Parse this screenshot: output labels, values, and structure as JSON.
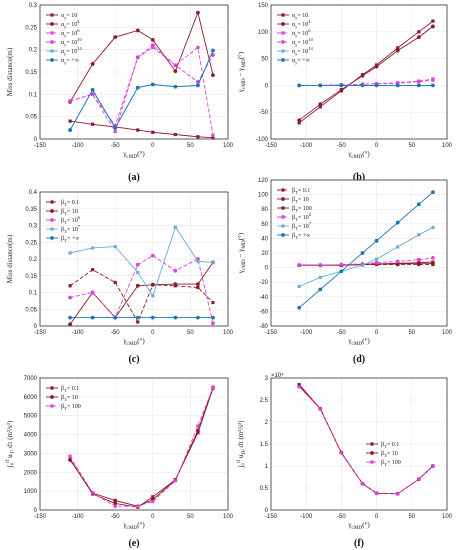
{
  "colors": {
    "darkred": "#8b1a2b",
    "magenta": "#e040e0",
    "lightblue": "#6aaed6",
    "blue": "#1f77b4"
  },
  "chart_data": [
    {
      "type": "line",
      "panel": "a",
      "caption": "(a)",
      "xlabel": "γ_cMD(°)",
      "ylabel": "Miss distance(m)",
      "xlim": [
        -150,
        100
      ],
      "ylim": [
        0,
        0.3
      ],
      "xticks": [
        "-150",
        "-100",
        "-50",
        "0",
        "50",
        "100"
      ],
      "yticks": [
        "0",
        "0.05",
        "0.1",
        "0.15",
        "0.2",
        "0.25",
        "0.3"
      ],
      "grid": true,
      "legend": "top-left",
      "series": [
        {
          "name": "α_y= 10",
          "color": "#8b1a2b",
          "dash": "",
          "marker": "square",
          "x": [
            -110,
            -80,
            -50,
            -20,
            0,
            30,
            60,
            80
          ],
          "y": [
            0.04,
            0.033,
            0.027,
            0.02,
            0.015,
            0.01,
            0.005,
            0.003
          ]
        },
        {
          "name": "α_y= 10^4",
          "color": "#8b1a2b",
          "dash": "",
          "marker": "circle",
          "x": [
            -110,
            -80,
            -50,
            -20,
            0,
            30,
            60,
            80
          ],
          "y": [
            0.083,
            0.168,
            0.228,
            0.243,
            0.222,
            0.152,
            0.283,
            0.143
          ]
        },
        {
          "name": "α_y= 10^6",
          "color": "#e040e0",
          "dash": "4,2",
          "marker": "square",
          "x": [
            -110,
            -80,
            -50,
            -20,
            0,
            30,
            60,
            80
          ],
          "y": [
            0.085,
            0.1,
            0.017,
            0.183,
            0.205,
            0.165,
            0.205,
            0.008
          ]
        },
        {
          "name": "α_y= 10^10",
          "color": "#e040e0",
          "dash": "4,2",
          "marker": "circle",
          "x": [
            -110,
            -80,
            -50,
            -20,
            0,
            30,
            60,
            80
          ],
          "y": [
            0.085,
            0.1,
            0.03,
            0.183,
            0.21,
            0.165,
            0.128,
            0.188
          ]
        },
        {
          "name": "α_y= 10^14",
          "color": "#6aaed6",
          "dash": "",
          "marker": "square",
          "x": [
            -110,
            -80,
            -50,
            -20,
            0,
            30,
            60,
            80
          ],
          "y": [
            0.02,
            0.11,
            0.025,
            0.115,
            0.122,
            0.117,
            0.12,
            0.198
          ]
        },
        {
          "name": "α_y= +∞",
          "color": "#1f77b4",
          "dash": "",
          "marker": "circle",
          "x": [
            -110,
            -80,
            -50,
            -20,
            0,
            30,
            60,
            80
          ],
          "y": [
            0.02,
            0.11,
            0.025,
            0.115,
            0.122,
            0.117,
            0.12,
            0.198
          ]
        }
      ]
    },
    {
      "type": "line",
      "panel": "b",
      "caption": "(b)",
      "xlabel": "γ_cMD(°)",
      "ylabel": "γ_cMD − γ_MD(°)",
      "xlim": [
        -150,
        100
      ],
      "ylim": [
        -100,
        150
      ],
      "xticks": [
        "-150",
        "-100",
        "-50",
        "0",
        "50",
        "100"
      ],
      "yticks": [
        "-100",
        "-50",
        "0",
        "50",
        "100",
        "150"
      ],
      "grid": true,
      "legend": "top-left",
      "series": [
        {
          "name": "α_y= 10",
          "color": "#8b1a2b",
          "dash": "",
          "marker": "square",
          "x": [
            -110,
            -80,
            -50,
            -20,
            0,
            30,
            60,
            80
          ],
          "y": [
            -70,
            -40,
            -10,
            20,
            38,
            70,
            100,
            120
          ]
        },
        {
          "name": "α_y= 10^4",
          "color": "#8b1a2b",
          "dash": "",
          "marker": "circle",
          "x": [
            -110,
            -80,
            -50,
            -20,
            0,
            30,
            60,
            80
          ],
          "y": [
            -65,
            -35,
            -8,
            18,
            35,
            65,
            90,
            110
          ]
        },
        {
          "name": "α_y= 10^6",
          "color": "#e040e0",
          "dash": "4,2",
          "marker": "square",
          "x": [
            -110,
            -80,
            -50,
            -20,
            0,
            30,
            60,
            80
          ],
          "y": [
            0,
            0,
            1,
            2,
            3,
            5,
            8,
            12
          ]
        },
        {
          "name": "α_y= 10^10",
          "color": "#e040e0",
          "dash": "4,2",
          "marker": "circle",
          "x": [
            -110,
            -80,
            -50,
            -20,
            0,
            30,
            60,
            80
          ],
          "y": [
            0,
            0,
            1,
            2,
            3,
            4,
            7,
            10
          ]
        },
        {
          "name": "α_y= 10^14",
          "color": "#6aaed6",
          "dash": "",
          "marker": "square",
          "x": [
            -110,
            -80,
            -50,
            -20,
            0,
            30,
            60,
            80
          ],
          "y": [
            0,
            0,
            0,
            0,
            0,
            0,
            0,
            0
          ]
        },
        {
          "name": "α_y= +∞",
          "color": "#1f77b4",
          "dash": "",
          "marker": "circle",
          "x": [
            -110,
            -80,
            -50,
            -20,
            0,
            30,
            60,
            80
          ],
          "y": [
            0,
            0,
            0,
            0,
            0,
            0,
            0,
            0
          ]
        }
      ]
    },
    {
      "type": "line",
      "panel": "c",
      "caption": "(c)",
      "xlabel": "γ_cMD(°)",
      "ylabel": "Miss distance(m)",
      "xlim": [
        -150,
        100
      ],
      "ylim": [
        0,
        0.4
      ],
      "xticks": [
        "-150",
        "-100",
        "-50",
        "0",
        "50",
        "100"
      ],
      "yticks": [
        "0",
        "0.05",
        "0.1",
        "0.15",
        "0.2",
        "0.25",
        "0.3",
        "0.35",
        "0.4"
      ],
      "grid": true,
      "legend": "top-left",
      "series": [
        {
          "name": "β_T= 0.1",
          "color": "#8b1a2b",
          "dash": "4,2",
          "marker": "square",
          "x": [
            -110,
            -80,
            -50,
            -20,
            0,
            30,
            60,
            80
          ],
          "y": [
            0.12,
            0.168,
            0.13,
            0.012,
            0.123,
            0.12,
            0.115,
            0.07
          ]
        },
        {
          "name": "β_T= 10",
          "color": "#8b1a2b",
          "dash": "",
          "marker": "circle",
          "x": [
            -110,
            -80,
            -50,
            -20,
            0,
            30,
            60,
            80
          ],
          "y": [
            0.005,
            0.1,
            0.025,
            0.12,
            0.123,
            0.125,
            0.125,
            0.19
          ]
        },
        {
          "name": "β_T= 10^6",
          "color": "#e040e0",
          "dash": "4,2",
          "marker": "circle",
          "x": [
            -110,
            -80,
            -50,
            -20,
            0,
            30,
            60,
            80
          ],
          "y": [
            0.085,
            0.1,
            0.025,
            0.183,
            0.21,
            0.165,
            0.2,
            0.008
          ]
        },
        {
          "name": "β_T= 10^7",
          "color": "#6aaed6",
          "dash": "",
          "marker": "square",
          "x": [
            -110,
            -80,
            -50,
            -20,
            0,
            30,
            60,
            80
          ],
          "y": [
            0.218,
            0.233,
            0.237,
            0.16,
            0.09,
            0.295,
            0.193,
            0.19
          ]
        },
        {
          "name": "β_T= +∞",
          "color": "#1f77b4",
          "dash": "",
          "marker": "circle",
          "x": [
            -110,
            -80,
            -50,
            -20,
            0,
            30,
            60,
            80
          ],
          "y": [
            0.025,
            0.025,
            0.025,
            0.025,
            0.025,
            0.025,
            0.025,
            0.025
          ]
        }
      ]
    },
    {
      "type": "line",
      "panel": "d",
      "caption": "(d)",
      "xlabel": "γ_cMD(°)",
      "ylabel": "γ_cMD − γ_MD(°)",
      "xlim": [
        -150,
        100
      ],
      "ylim": [
        -100,
        140
      ],
      "xticks": [
        "-150",
        "-100",
        "-50",
        "0",
        "50",
        "100"
      ],
      "yticks": [
        "-80",
        "-60",
        "-40",
        "-20",
        "0",
        "20",
        "40",
        "60",
        "80",
        "100",
        "120"
      ],
      "grid": true,
      "legend": "top-left",
      "series": [
        {
          "name": "β_T= 0.1",
          "color": "#8b1a2b",
          "dash": "4,2",
          "marker": "square",
          "x": [
            -110,
            -80,
            -50,
            -20,
            0,
            30,
            60,
            80
          ],
          "y": [
            0,
            0,
            0,
            1,
            1,
            1,
            1,
            1
          ]
        },
        {
          "name": "β_T= 10",
          "color": "#8b1a2b",
          "dash": "",
          "marker": "circle",
          "x": [
            -110,
            -80,
            -50,
            -20,
            0,
            30,
            60,
            80
          ],
          "y": [
            0,
            0,
            0,
            1,
            2,
            2,
            3,
            3
          ]
        },
        {
          "name": "β_T= 100",
          "color": "#8b1a2b",
          "dash": "",
          "marker": "square",
          "x": [
            -110,
            -80,
            -50,
            -20,
            0,
            30,
            60,
            80
          ],
          "y": [
            0,
            0,
            0,
            1,
            2,
            3,
            4,
            5
          ]
        },
        {
          "name": "β_T= 10^6",
          "color": "#e040e0",
          "dash": "4,2",
          "marker": "circle",
          "x": [
            -110,
            -80,
            -50,
            -20,
            0,
            30,
            60,
            80
          ],
          "y": [
            0,
            0,
            1,
            2,
            4,
            6,
            9,
            12
          ]
        },
        {
          "name": "β_T= 10^7",
          "color": "#6aaed6",
          "dash": "",
          "marker": "square",
          "x": [
            -110,
            -80,
            -50,
            -20,
            0,
            30,
            60,
            80
          ],
          "y": [
            -35,
            -20,
            -10,
            0,
            10,
            30,
            50,
            62
          ]
        },
        {
          "name": "β_T= +∞",
          "color": "#1f77b4",
          "dash": "",
          "marker": "circle",
          "x": [
            -110,
            -80,
            -50,
            -20,
            0,
            30,
            60,
            80
          ],
          "y": [
            -70,
            -40,
            -10,
            20,
            40,
            70,
            100,
            120
          ]
        }
      ]
    },
    {
      "type": "line",
      "panel": "e",
      "caption": "(e)",
      "xlabel": "γ_cMD(°)",
      "ylabel": "∫₀^tf u_T² dτ (m²/s³)",
      "xlim": [
        -150,
        100
      ],
      "ylim": [
        0,
        7000
      ],
      "xticks": [
        "-150",
        "-100",
        "-50",
        "0",
        "50",
        "100"
      ],
      "yticks": [
        "0",
        "1000",
        "2000",
        "3000",
        "4000",
        "5000",
        "6000",
        "7000"
      ],
      "grid": true,
      "legend": "top-left",
      "series": [
        {
          "name": "β_T= 0.1",
          "color": "#8b1a2b",
          "dash": "",
          "marker": "square",
          "x": [
            -110,
            -80,
            -50,
            -20,
            0,
            30,
            60,
            80
          ],
          "y": [
            2700,
            850,
            350,
            150,
            700,
            1600,
            4100,
            6450
          ]
        },
        {
          "name": "β_T= 10",
          "color": "#8b1a2b",
          "dash": "",
          "marker": "circle",
          "x": [
            -110,
            -80,
            -50,
            -20,
            0,
            30,
            60,
            80
          ],
          "y": [
            2650,
            900,
            500,
            200,
            550,
            1600,
            4200,
            6500
          ]
        },
        {
          "name": "β_T= 100",
          "color": "#e040e0",
          "dash": "4,2",
          "marker": "square",
          "x": [
            -110,
            -80,
            -50,
            -20,
            0,
            30,
            60,
            80
          ],
          "y": [
            2850,
            900,
            200,
            200,
            450,
            1550,
            4450,
            6500
          ]
        }
      ]
    },
    {
      "type": "line",
      "panel": "f",
      "caption": "(f)",
      "xlabel": "γ_cMD(°)",
      "ylabel": "∫₀^tf u_D² dτ (m²/s³)",
      "exponent_label": "×10⁴",
      "xlim": [
        -150,
        100
      ],
      "ylim": [
        0,
        30000
      ],
      "xticks": [
        "-150",
        "-100",
        "-50",
        "0",
        "50",
        "100"
      ],
      "yticks": [
        "0",
        "0.5",
        "1",
        "1.5",
        "2",
        "2.5",
        "3"
      ],
      "grid": true,
      "legend": "right",
      "series": [
        {
          "name": "β_T= 0.1",
          "color": "#8b1a2b",
          "dash": "",
          "marker": "square",
          "x": [
            -110,
            -80,
            -50,
            -20,
            0,
            30,
            60,
            80
          ],
          "y": [
            28500,
            23000,
            13000,
            6000,
            3800,
            3700,
            7000,
            10000
          ]
        },
        {
          "name": "β_T= 10",
          "color": "#8b1a2b",
          "dash": "",
          "marker": "circle",
          "x": [
            -110,
            -80,
            -50,
            -20,
            0,
            30,
            60,
            80
          ],
          "y": [
            28200,
            23000,
            13000,
            6000,
            3800,
            3700,
            7000,
            10000
          ]
        },
        {
          "name": "β_T= 100",
          "color": "#e040e0",
          "dash": "4,2",
          "marker": "square",
          "x": [
            -110,
            -80,
            -50,
            -20,
            0,
            30,
            60,
            80
          ],
          "y": [
            28000,
            23000,
            13000,
            6000,
            3800,
            3700,
            7000,
            10000
          ]
        }
      ]
    }
  ]
}
